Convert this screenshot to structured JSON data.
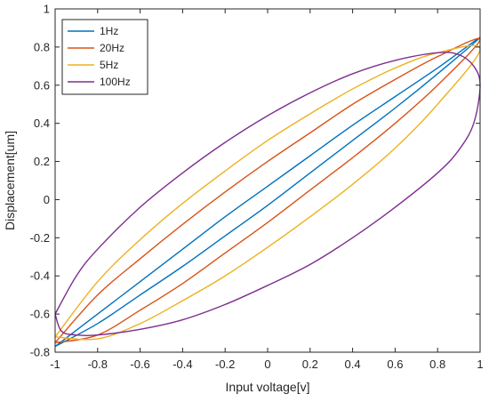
{
  "chart_data": {
    "type": "line",
    "title": "",
    "xlabel": "Input voltage[v]",
    "ylabel": "Displacement[um]",
    "xlim": [
      -1,
      1
    ],
    "ylim": [
      -0.8,
      1
    ],
    "xticks": [
      -1,
      -0.8,
      -0.6,
      -0.4,
      -0.2,
      0,
      0.2,
      0.4,
      0.6,
      0.8,
      1
    ],
    "xtick_labels": [
      "-1",
      "-0.8",
      "-0.6",
      "-0.4",
      "-0.2",
      "0",
      "0.2",
      "0.4",
      "0.6",
      "0.8",
      "1"
    ],
    "yticks": [
      -0.8,
      -0.6,
      -0.4,
      -0.2,
      0,
      0.2,
      0.4,
      0.6,
      0.8,
      1
    ],
    "ytick_labels": [
      "-0.8",
      "-0.6",
      "-0.4",
      "-0.2",
      "0",
      "0.2",
      "0.4",
      "0.6",
      "0.8",
      "1"
    ],
    "grid": false,
    "legend_position": "top-left",
    "series": [
      {
        "name": "1Hz",
        "color": "#0072BD",
        "x": [
          -1,
          -0.8,
          -0.6,
          -0.4,
          -0.2,
          0,
          0.2,
          0.4,
          0.6,
          0.8,
          1,
          0.8,
          0.6,
          0.4,
          0.2,
          0,
          -0.2,
          -0.4,
          -0.6,
          -0.8,
          -1
        ],
        "y": [
          -0.77,
          -0.6,
          -0.43,
          -0.26,
          -0.09,
          0.07,
          0.23,
          0.39,
          0.54,
          0.69,
          0.85,
          0.66,
          0.48,
          0.31,
          0.14,
          -0.03,
          -0.19,
          -0.35,
          -0.5,
          -0.65,
          -0.77
        ]
      },
      {
        "name": "20Hz",
        "color": "#D95319",
        "x": [
          -1,
          -0.8,
          -0.6,
          -0.4,
          -0.2,
          0,
          0.2,
          0.4,
          0.6,
          0.8,
          1,
          0.8,
          0.6,
          0.4,
          0.2,
          0,
          -0.2,
          -0.4,
          -0.6,
          -0.8,
          -1
        ],
        "y": [
          -0.75,
          -0.5,
          -0.31,
          -0.13,
          0.04,
          0.2,
          0.35,
          0.5,
          0.63,
          0.75,
          0.84,
          0.6,
          0.4,
          0.22,
          0.05,
          -0.12,
          -0.28,
          -0.44,
          -0.58,
          -0.71,
          -0.75
        ]
      },
      {
        "name": "5Hz",
        "color": "#EDB120",
        "x": [
          -1,
          -0.8,
          -0.6,
          -0.4,
          -0.2,
          0,
          0.2,
          0.4,
          0.6,
          0.8,
          1,
          0.8,
          0.6,
          0.4,
          0.2,
          0,
          -0.2,
          -0.4,
          -0.6,
          -0.8,
          -1
        ],
        "y": [
          -0.72,
          -0.43,
          -0.21,
          -0.02,
          0.15,
          0.31,
          0.45,
          0.58,
          0.69,
          0.77,
          0.79,
          0.5,
          0.27,
          0.08,
          -0.09,
          -0.25,
          -0.4,
          -0.53,
          -0.65,
          -0.73,
          -0.72
        ]
      },
      {
        "name": "100Hz",
        "color": "#7E2F8E",
        "x": [
          -1,
          -0.9,
          -0.8,
          -0.6,
          -0.4,
          -0.2,
          0,
          0.2,
          0.4,
          0.6,
          0.8,
          0.9,
          0.97,
          1,
          0.97,
          0.9,
          0.8,
          0.6,
          0.4,
          0.2,
          0,
          -0.2,
          -0.4,
          -0.6,
          -0.8,
          -0.9,
          -0.97,
          -1
        ],
        "y": [
          -0.6,
          -0.4,
          -0.26,
          -0.04,
          0.14,
          0.3,
          0.44,
          0.56,
          0.66,
          0.73,
          0.77,
          0.76,
          0.7,
          0.6,
          0.4,
          0.26,
          0.14,
          -0.04,
          -0.2,
          -0.34,
          -0.45,
          -0.55,
          -0.63,
          -0.68,
          -0.71,
          -0.71,
          -0.69,
          -0.6
        ]
      }
    ]
  }
}
